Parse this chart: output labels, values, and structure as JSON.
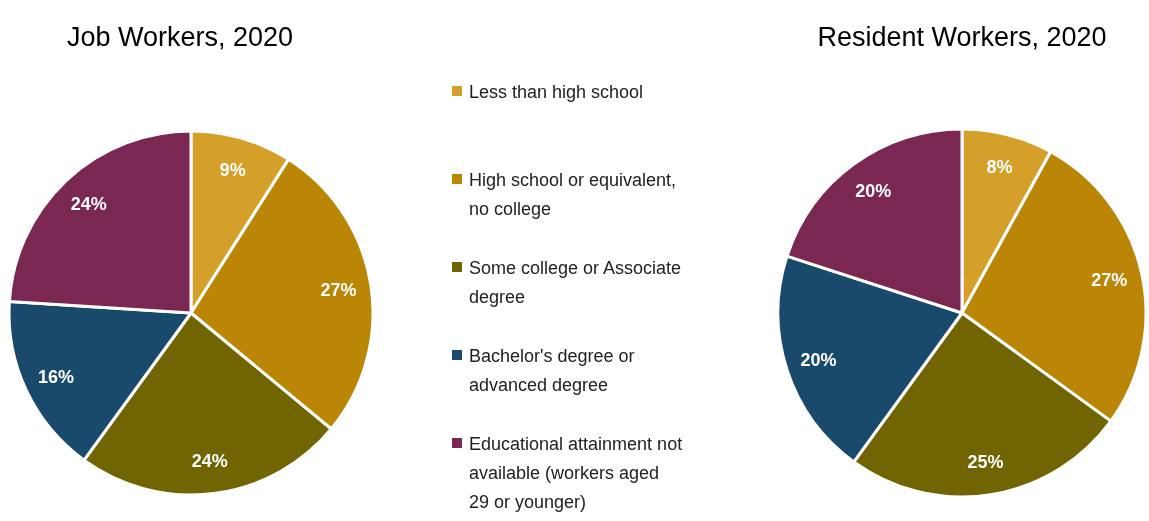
{
  "chart_data": [
    {
      "type": "pie",
      "title": "Job Workers, 2020",
      "categories": [
        "Less than high school",
        "High school or equivalent, no college",
        "Some college or Associate degree",
        "Bachelor's degree or advanced degree",
        "Educational attainment not available (workers aged 29 or younger)"
      ],
      "values": [
        9,
        27,
        24,
        16,
        24
      ],
      "value_labels": [
        "9%",
        "27%",
        "24%",
        "16%",
        "24%"
      ],
      "colors": [
        "#d4a02a",
        "#bb8506",
        "#716503",
        "#1a4a6b",
        "#7a2752"
      ],
      "legend": "right"
    },
    {
      "type": "pie",
      "title": "Resident Workers, 2020",
      "categories": [
        null,
        null,
        null,
        null,
        null
      ],
      "values": [
        8,
        27,
        25,
        20,
        20
      ],
      "value_labels": [
        "8%",
        "27%",
        "25%",
        "20%",
        "20%"
      ],
      "colors": [
        "#d4a02a",
        "#bb8506",
        "#716503",
        "#1a4a6b",
        "#7a2752"
      ]
    }
  ]
}
